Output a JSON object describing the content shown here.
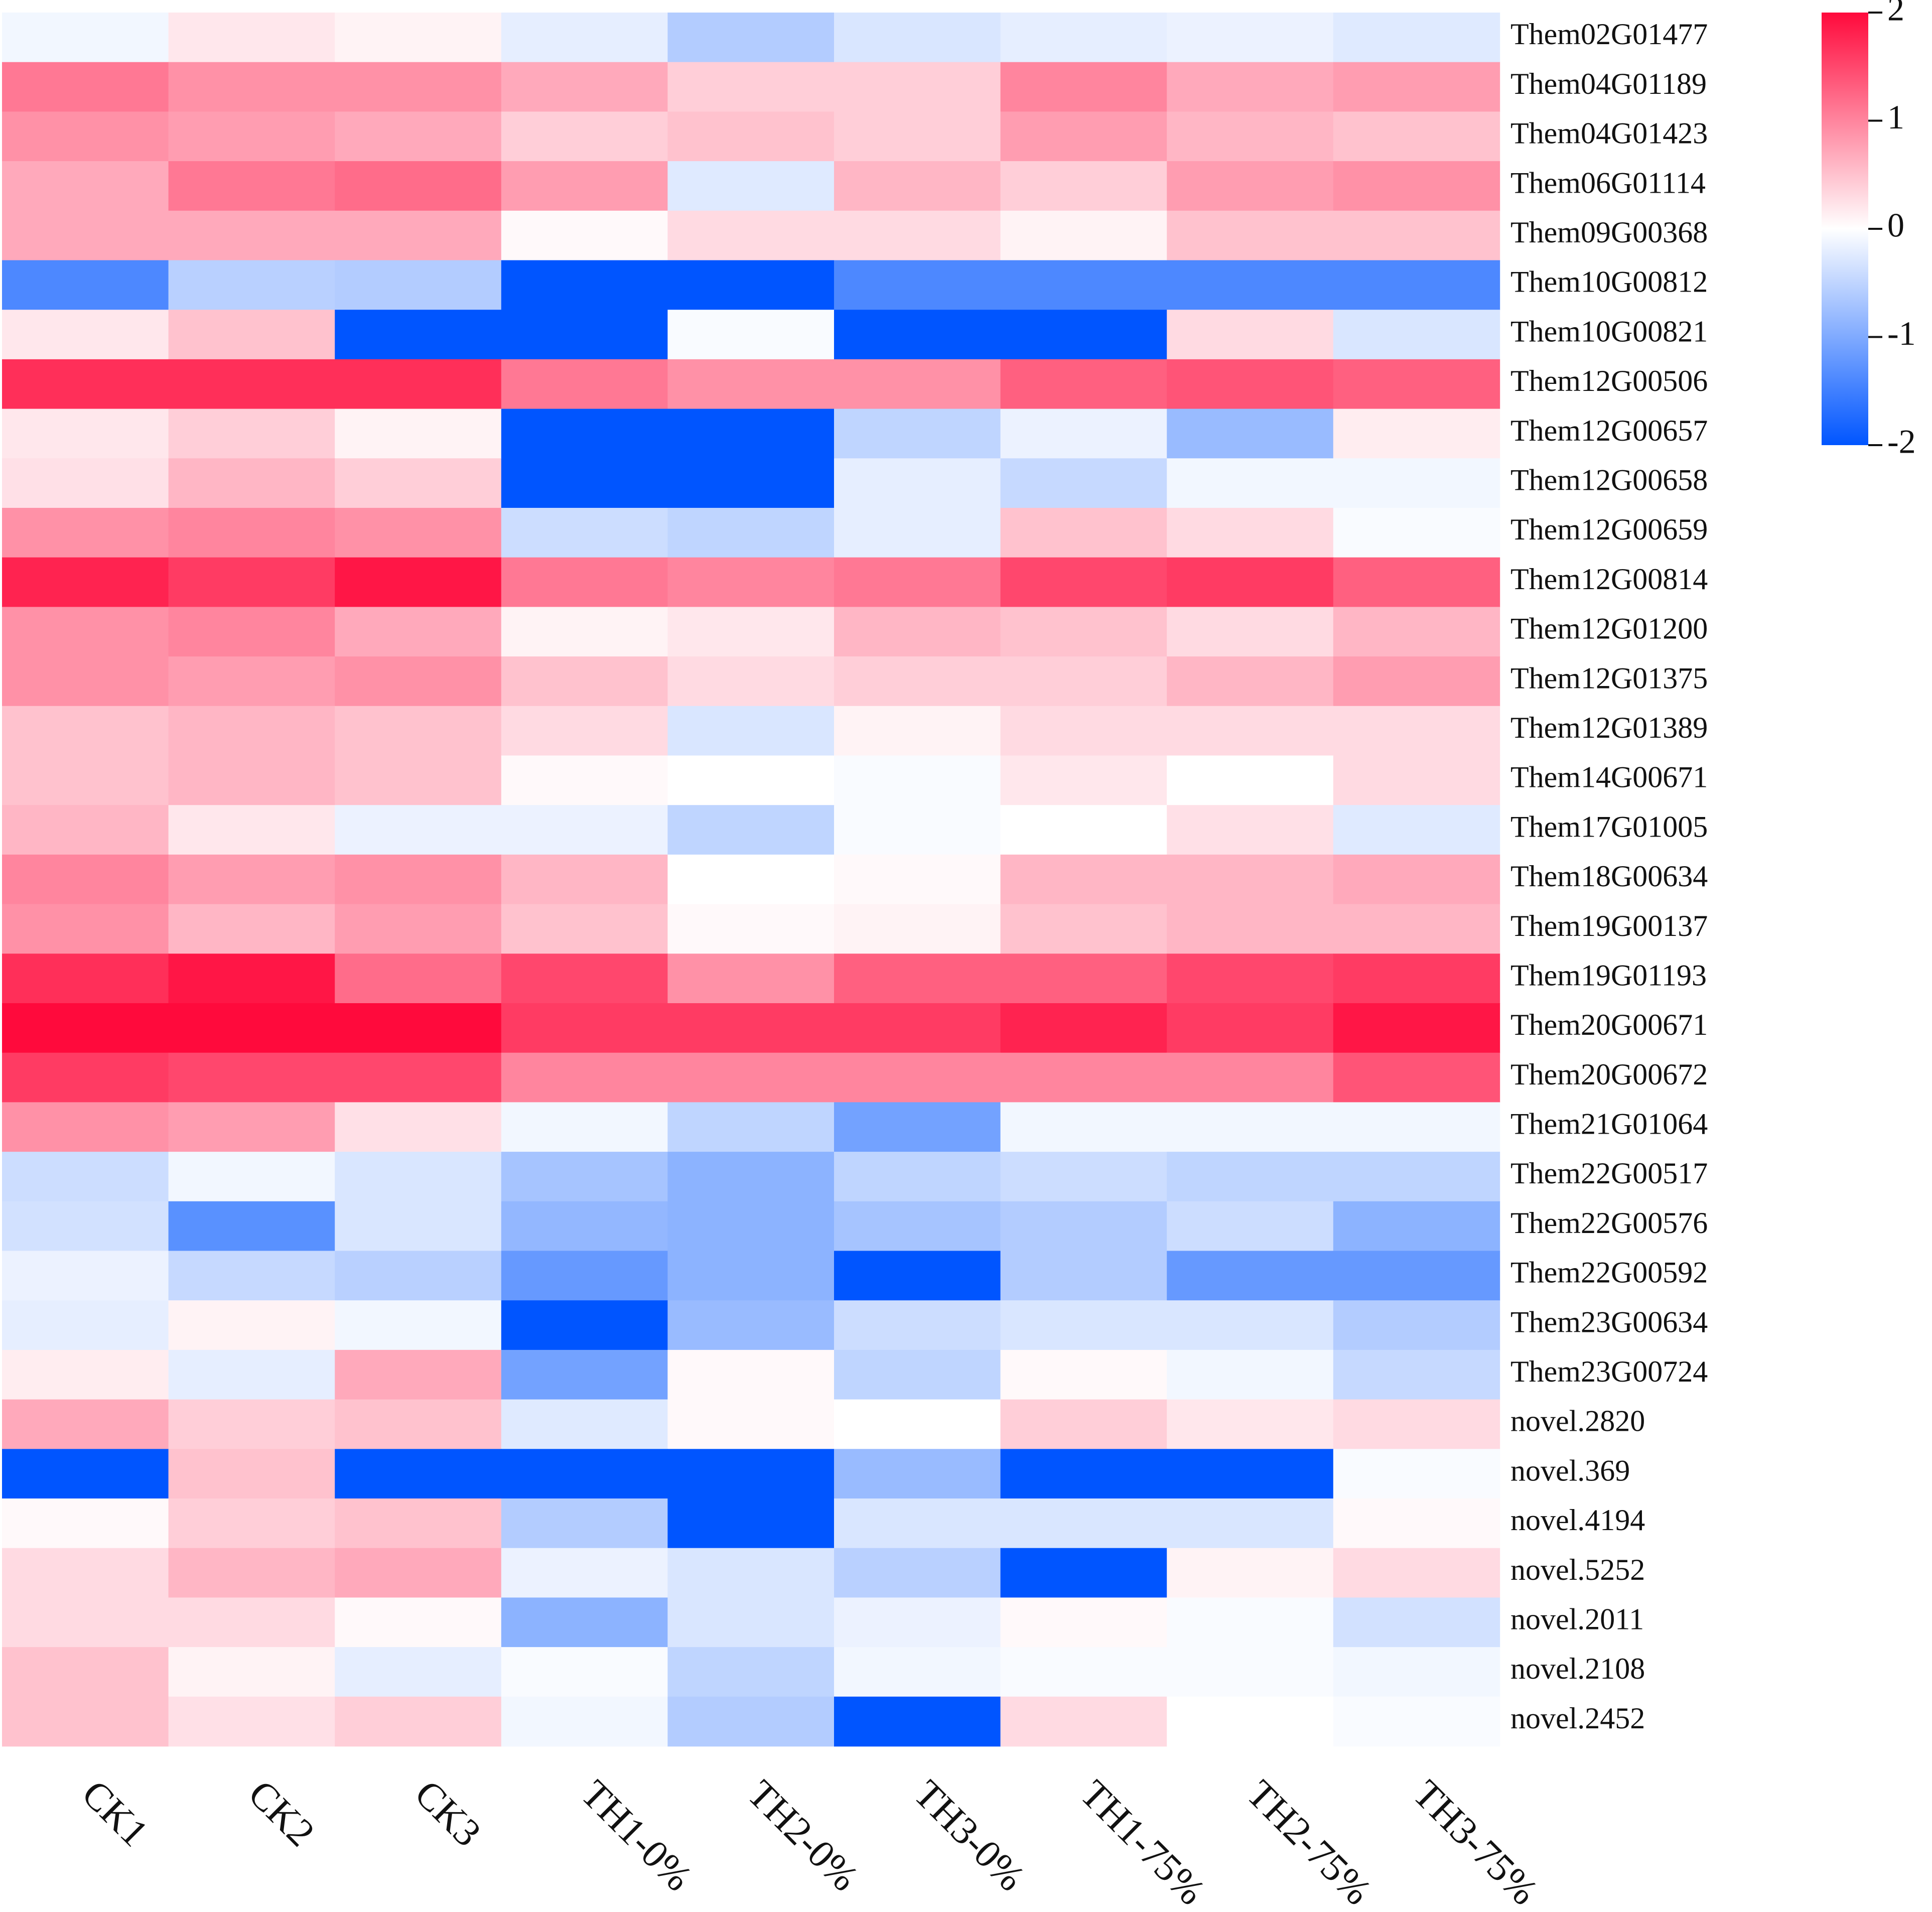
{
  "chart_data": {
    "type": "heatmap",
    "title": "",
    "columns": [
      "CK1",
      "CK2",
      "CK3",
      "TH1-0%",
      "TH2-0%",
      "TH3-0%",
      "TH1-75%",
      "TH2-75%",
      "TH3-75%"
    ],
    "rows": [
      "Them02G01477",
      "Them04G01189",
      "Them04G01423",
      "Them06G01114",
      "Them09G00368",
      "Them10G00812",
      "Them10G00821",
      "Them12G00506",
      "Them12G00657",
      "Them12G00658",
      "Them12G00659",
      "Them12G00814",
      "Them12G01200",
      "Them12G01375",
      "Them12G01389",
      "Them14G00671",
      "Them17G01005",
      "Them18G00634",
      "Them19G00137",
      "Them19G01193",
      "Them20G00671",
      "Them20G00672",
      "Them21G01064",
      "Them22G00517",
      "Them22G00576",
      "Them22G00592",
      "Them23G00634",
      "Them23G00724",
      "novel.2820",
      "novel.369",
      "novel.4194",
      "novel.5252",
      "novel.2011",
      "novel.2108",
      "novel.2452"
    ],
    "values": [
      [
        -0.1,
        0.2,
        0.1,
        -0.2,
        -0.6,
        -0.3,
        -0.2,
        -0.15,
        -0.25
      ],
      [
        1.1,
        0.9,
        0.9,
        0.7,
        0.4,
        0.4,
        1.0,
        0.7,
        0.8
      ],
      [
        0.9,
        0.8,
        0.7,
        0.4,
        0.5,
        0.4,
        0.8,
        0.6,
        0.5
      ],
      [
        0.7,
        1.1,
        1.2,
        0.8,
        -0.25,
        0.6,
        0.4,
        0.8,
        0.9
      ],
      [
        0.7,
        0.7,
        0.7,
        0.05,
        0.3,
        0.3,
        0.1,
        0.5,
        0.5
      ],
      [
        -1.4,
        -0.55,
        -0.6,
        -2,
        -2,
        -1.4,
        -1.4,
        -1.4,
        -1.4
      ],
      [
        0.2,
        0.5,
        -2,
        -2,
        -0.05,
        -2,
        -2,
        0.3,
        -0.3
      ],
      [
        1.7,
        1.7,
        1.7,
        1.1,
        0.9,
        0.9,
        1.3,
        1.4,
        1.3
      ],
      [
        0.2,
        0.4,
        0.1,
        -2,
        -2,
        -0.5,
        -0.15,
        -0.8,
        0.15
      ],
      [
        0.25,
        0.6,
        0.4,
        -2,
        -2,
        -0.2,
        -0.45,
        -0.1,
        -0.1
      ],
      [
        0.9,
        1.0,
        0.9,
        -0.4,
        -0.5,
        -0.2,
        0.5,
        0.3,
        -0.05
      ],
      [
        1.8,
        1.6,
        1.9,
        1.1,
        1.0,
        1.1,
        1.5,
        1.6,
        1.3
      ],
      [
        0.9,
        1.0,
        0.7,
        0.1,
        0.2,
        0.6,
        0.5,
        0.3,
        0.6
      ],
      [
        0.9,
        0.8,
        0.9,
        0.5,
        0.3,
        0.4,
        0.4,
        0.6,
        0.8
      ],
      [
        0.5,
        0.6,
        0.5,
        0.3,
        -0.3,
        0.1,
        0.3,
        0.3,
        0.3
      ],
      [
        0.5,
        0.6,
        0.5,
        0.05,
        0.0,
        -0.05,
        0.2,
        0.0,
        0.3
      ],
      [
        0.6,
        0.2,
        -0.15,
        -0.15,
        -0.5,
        -0.05,
        0.0,
        0.25,
        -0.25
      ],
      [
        1.0,
        0.8,
        0.9,
        0.6,
        0.0,
        0.05,
        0.6,
        0.6,
        0.7
      ],
      [
        0.9,
        0.6,
        0.8,
        0.5,
        0.05,
        0.1,
        0.5,
        0.6,
        0.6
      ],
      [
        1.7,
        1.9,
        1.2,
        1.5,
        0.9,
        1.3,
        1.3,
        1.5,
        1.6
      ],
      [
        2.0,
        2.0,
        2.0,
        1.6,
        1.6,
        1.6,
        1.8,
        1.6,
        1.9
      ],
      [
        1.6,
        1.5,
        1.5,
        1.0,
        1.0,
        1.0,
        1.0,
        1.0,
        1.4
      ],
      [
        0.9,
        0.8,
        0.25,
        -0.1,
        -0.5,
        -1.1,
        -0.1,
        -0.1,
        -0.1
      ],
      [
        -0.4,
        -0.1,
        -0.3,
        -0.7,
        -0.9,
        -0.5,
        -0.4,
        -0.5,
        -0.5
      ],
      [
        -0.35,
        -1.3,
        -0.3,
        -0.85,
        -0.9,
        -0.7,
        -0.6,
        -0.4,
        -0.9
      ],
      [
        -0.15,
        -0.45,
        -0.55,
        -1.2,
        -0.9,
        -2,
        -0.6,
        -1.2,
        -1.2
      ],
      [
        -0.2,
        0.1,
        -0.1,
        -2,
        -0.8,
        -0.4,
        -0.3,
        -0.3,
        -0.6
      ],
      [
        0.15,
        -0.2,
        0.7,
        -1.1,
        0.05,
        -0.5,
        0.05,
        -0.1,
        -0.45
      ],
      [
        0.7,
        0.4,
        0.5,
        -0.25,
        0.05,
        0.0,
        0.4,
        0.2,
        0.3
      ],
      [
        -2,
        0.5,
        -2,
        -2,
        -2,
        -0.8,
        -2,
        -2,
        -0.05
      ],
      [
        0.05,
        0.4,
        0.5,
        -0.6,
        -2,
        -0.3,
        -0.3,
        -0.3,
        0.05
      ],
      [
        0.3,
        0.6,
        0.7,
        -0.15,
        -0.3,
        -0.55,
        -2,
        0.1,
        0.3
      ],
      [
        0.3,
        0.3,
        0.05,
        -0.9,
        -0.3,
        -0.15,
        0.05,
        -0.05,
        -0.35
      ],
      [
        0.5,
        0.1,
        -0.2,
        -0.05,
        -0.5,
        -0.1,
        -0.05,
        -0.05,
        -0.1
      ],
      [
        0.5,
        0.25,
        0.4,
        -0.1,
        -0.6,
        -2,
        0.3,
        0.0,
        -0.05
      ]
    ],
    "colorbar": {
      "min": -2,
      "max": 2,
      "ticks": [
        2,
        1,
        0,
        -1,
        -2
      ],
      "tick_labels": [
        "2",
        "1",
        "0",
        "-1",
        "-2"
      ],
      "colors": {
        "low": "#0055ff",
        "mid": "#ffffff",
        "high": "#ff0a3c"
      }
    },
    "xlabel": "",
    "ylabel": ""
  }
}
